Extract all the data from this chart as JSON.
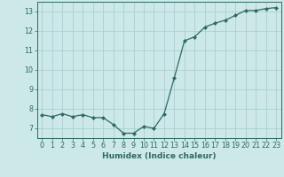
{
  "x": [
    0,
    1,
    2,
    3,
    4,
    5,
    6,
    7,
    8,
    9,
    10,
    11,
    12,
    13,
    14,
    15,
    16,
    17,
    18,
    19,
    20,
    21,
    22,
    23
  ],
  "y": [
    7.7,
    7.6,
    7.75,
    7.6,
    7.7,
    7.55,
    7.55,
    7.2,
    6.75,
    6.75,
    7.1,
    7.0,
    7.75,
    9.6,
    11.5,
    11.7,
    12.2,
    12.4,
    12.55,
    12.8,
    13.05,
    13.05,
    13.15,
    13.2
  ],
  "line_color": "#2e6b5e",
  "marker": "D",
  "marker_size": 2.0,
  "bg_color": "#cce8e8",
  "grid_color": "#aacfcf",
  "xlabel": "Humidex (Indice chaleur)",
  "ylim": [
    6.5,
    13.5
  ],
  "xlim": [
    -0.5,
    23.5
  ],
  "yticks": [
    7,
    8,
    9,
    10,
    11,
    12,
    13
  ],
  "xticks": [
    0,
    1,
    2,
    3,
    4,
    5,
    6,
    7,
    8,
    9,
    10,
    11,
    12,
    13,
    14,
    15,
    16,
    17,
    18,
    19,
    20,
    21,
    22,
    23
  ],
  "tick_color": "#2e6b5e",
  "label_fontsize": 6.5,
  "tick_fontsize": 5.8
}
